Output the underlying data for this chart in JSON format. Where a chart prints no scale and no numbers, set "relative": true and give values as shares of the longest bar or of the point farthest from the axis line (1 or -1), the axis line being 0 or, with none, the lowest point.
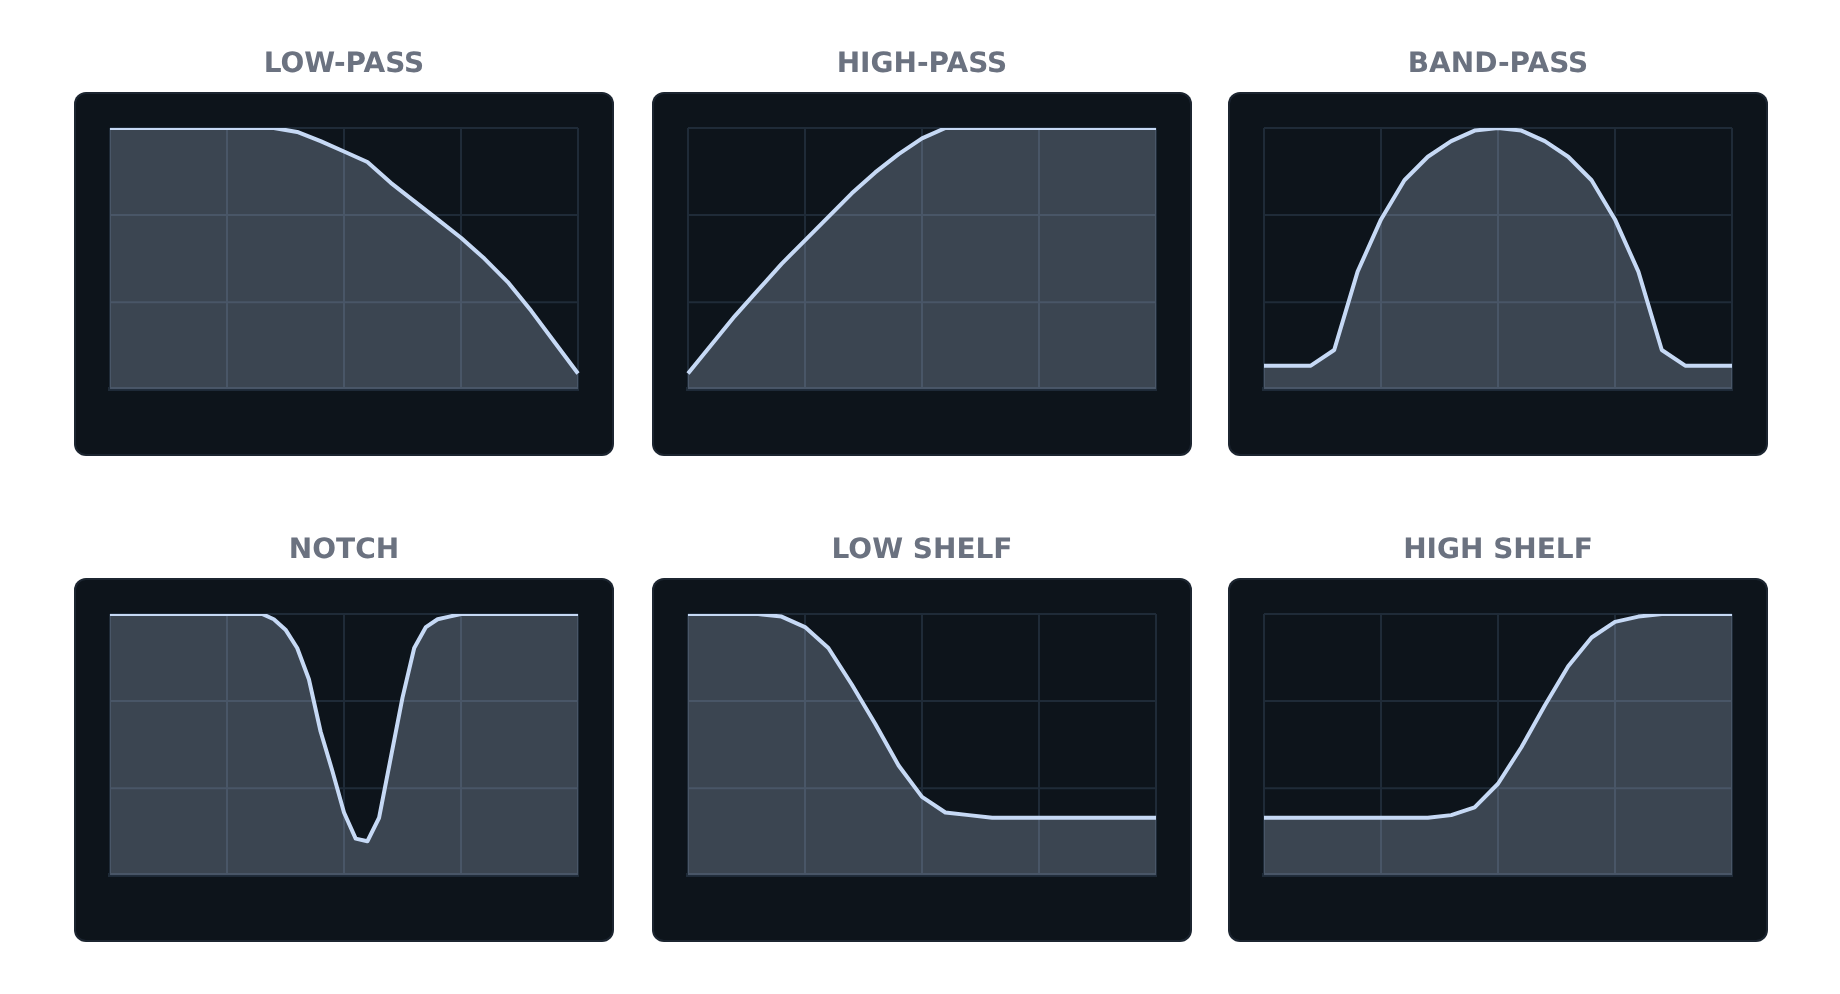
{
  "chart_data": [
    {
      "type": "area",
      "title": "LOW-PASS",
      "relative": true,
      "grid": true,
      "legend": false,
      "categories": [
        null,
        null,
        null,
        null,
        null,
        null,
        null,
        null,
        null,
        null,
        null,
        null,
        null,
        null,
        null,
        null,
        null,
        null,
        null,
        null,
        null
      ],
      "series": [
        {
          "color": "#c6d9f5",
          "values": [
            1,
            1,
            1,
            1,
            1,
            1,
            1,
            1,
            0.985,
            0.95,
            0.91,
            0.87,
            0.79,
            0.72,
            0.65,
            0.58,
            0.5,
            0.41,
            0.3,
            0.18,
            0.06
          ]
        }
      ]
    },
    {
      "type": "area",
      "title": "HIGH-PASS",
      "relative": true,
      "grid": true,
      "legend": false,
      "categories": [
        null,
        null,
        null,
        null,
        null,
        null,
        null,
        null,
        null,
        null,
        null,
        null,
        null,
        null,
        null,
        null,
        null,
        null,
        null,
        null,
        null
      ],
      "series": [
        {
          "color": "#c6d9f5",
          "values": [
            0.06,
            0.17,
            0.28,
            0.38,
            0.48,
            0.57,
            0.66,
            0.75,
            0.83,
            0.9,
            0.96,
            1,
            1,
            1,
            1,
            1,
            1,
            1,
            1,
            1,
            1
          ]
        }
      ]
    },
    {
      "type": "area",
      "title": "BAND-PASS",
      "relative": true,
      "grid": true,
      "legend": false,
      "categories": [
        null,
        null,
        null,
        null,
        null,
        null,
        null,
        null,
        null,
        null,
        null,
        null,
        null,
        null,
        null,
        null,
        null,
        null,
        null,
        null,
        null
      ],
      "series": [
        {
          "color": "#c6d9f5",
          "values": [
            0.09,
            0.09,
            0.09,
            0.15,
            0.45,
            0.65,
            0.8,
            0.89,
            0.95,
            0.99,
            1,
            0.99,
            0.95,
            0.89,
            0.8,
            0.65,
            0.45,
            0.15,
            0.09,
            0.09,
            0.09
          ]
        }
      ]
    },
    {
      "type": "area",
      "title": "NOTCH",
      "relative": true,
      "grid": true,
      "legend": false,
      "categories": [
        null,
        null,
        null,
        null,
        null,
        null,
        null,
        null,
        null,
        null,
        null,
        null,
        null,
        null,
        null,
        null,
        null,
        null,
        null,
        null,
        null,
        null,
        null,
        null,
        null,
        null,
        null,
        null,
        null,
        null,
        null,
        null,
        null,
        null,
        null,
        null,
        null,
        null,
        null,
        null,
        null
      ],
      "series": [
        {
          "color": "#c6d9f5",
          "values": [
            1,
            1,
            1,
            1,
            1,
            1,
            1,
            1,
            1,
            1,
            1,
            1,
            1,
            1,
            0.98,
            0.94,
            0.87,
            0.75,
            0.55,
            0.4,
            0.24,
            0.14,
            0.13,
            0.22,
            0.45,
            0.68,
            0.87,
            0.95,
            0.98,
            0.99,
            1,
            1,
            1,
            1,
            1,
            1,
            1,
            1,
            1,
            1,
            1
          ]
        }
      ]
    },
    {
      "type": "area",
      "title": "LOW SHELF",
      "relative": true,
      "grid": true,
      "legend": false,
      "categories": [
        null,
        null,
        null,
        null,
        null,
        null,
        null,
        null,
        null,
        null,
        null,
        null,
        null,
        null,
        null,
        null,
        null,
        null,
        null,
        null,
        null
      ],
      "series": [
        {
          "color": "#c6d9f5",
          "values": [
            1,
            1,
            1,
            1,
            0.99,
            0.95,
            0.87,
            0.73,
            0.58,
            0.42,
            0.3,
            0.24,
            0.23,
            0.22,
            0.22,
            0.22,
            0.22,
            0.22,
            0.22,
            0.22,
            0.22
          ]
        }
      ]
    },
    {
      "type": "area",
      "title": "HIGH SHELF",
      "relative": true,
      "grid": true,
      "legend": false,
      "categories": [
        null,
        null,
        null,
        null,
        null,
        null,
        null,
        null,
        null,
        null,
        null,
        null,
        null,
        null,
        null,
        null,
        null,
        null,
        null,
        null,
        null
      ],
      "series": [
        {
          "color": "#c6d9f5",
          "values": [
            0.22,
            0.22,
            0.22,
            0.22,
            0.22,
            0.22,
            0.22,
            0.22,
            0.23,
            0.26,
            0.35,
            0.49,
            0.65,
            0.8,
            0.91,
            0.97,
            0.99,
            1,
            1,
            1,
            1
          ]
        }
      ]
    }
  ]
}
